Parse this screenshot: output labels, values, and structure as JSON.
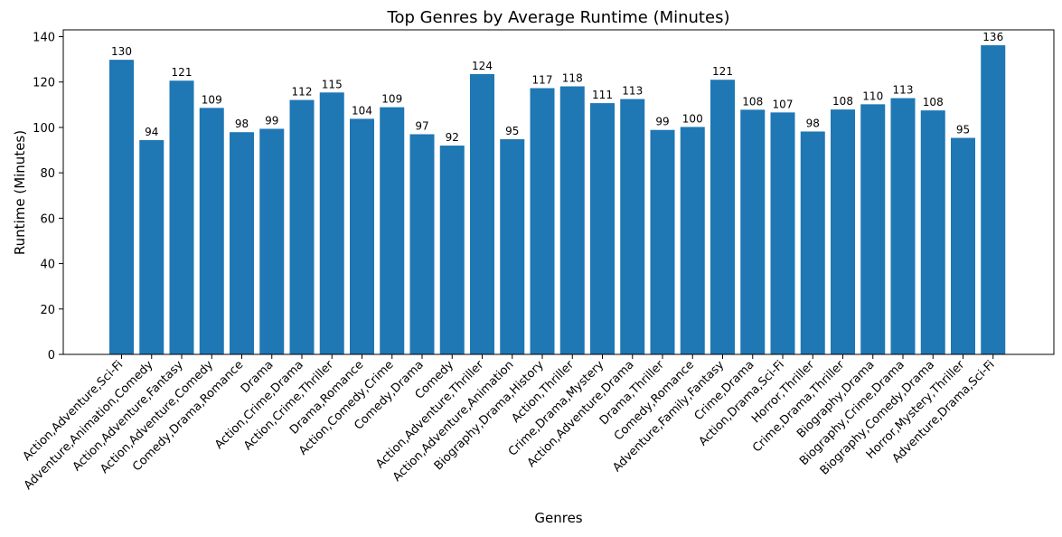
{
  "chart_data": {
    "type": "bar",
    "title": "Top Genres by Average Runtime (Minutes)",
    "xlabel": "Genres",
    "ylabel": "Runtime (Minutes)",
    "ylim": [
      0,
      143
    ],
    "yticks": [
      0,
      20,
      40,
      60,
      80,
      100,
      120,
      140
    ],
    "grid": false,
    "bar_color": "#1f77b4",
    "categories": [
      "Action,Adventure,Sci-Fi",
      "Adventure,Animation,Comedy",
      "Action,Adventure,Fantasy",
      "Action,Adventure,Comedy",
      "Comedy,Drama,Romance",
      "Drama",
      "Action,Crime,Drama",
      "Action,Crime,Thriller",
      "Drama,Romance",
      "Action,Comedy,Crime",
      "Comedy,Drama",
      "Comedy",
      "Action,Adventure,Thriller",
      "Action,Adventure,Animation",
      "Biography,Drama,History",
      "Action,Thriller",
      "Crime,Drama,Mystery",
      "Action,Adventure,Drama",
      "Drama,Thriller",
      "Comedy,Romance",
      "Adventure,Family,Fantasy",
      "Crime,Drama",
      "Action,Drama,Sci-Fi",
      "Horror,Thriller",
      "Crime,Drama,Thriller",
      "Biography,Drama",
      "Biography,Crime,Drama",
      "Biography,Comedy,Drama",
      "Horror,Mystery,Thriller",
      "Adventure,Drama,Sci-Fi"
    ],
    "values": [
      129.8,
      94.4,
      120.6,
      108.6,
      97.9,
      99.4,
      112.1,
      115.4,
      103.8,
      108.9,
      97.0,
      92.0,
      123.5,
      94.8,
      117.3,
      118.1,
      110.7,
      112.5,
      98.9,
      100.2,
      121.0,
      107.8,
      106.6,
      98.2,
      107.9,
      110.2,
      112.9,
      107.5,
      95.4,
      136.2
    ],
    "value_labels": [
      "130",
      "94",
      "121",
      "109",
      "98",
      "99",
      "112",
      "115",
      "104",
      "109",
      "97",
      "92",
      "124",
      "95",
      "117",
      "118",
      "111",
      "113",
      "99",
      "100",
      "121",
      "108",
      "107",
      "98",
      "108",
      "110",
      "113",
      "108",
      "95",
      "136"
    ]
  }
}
